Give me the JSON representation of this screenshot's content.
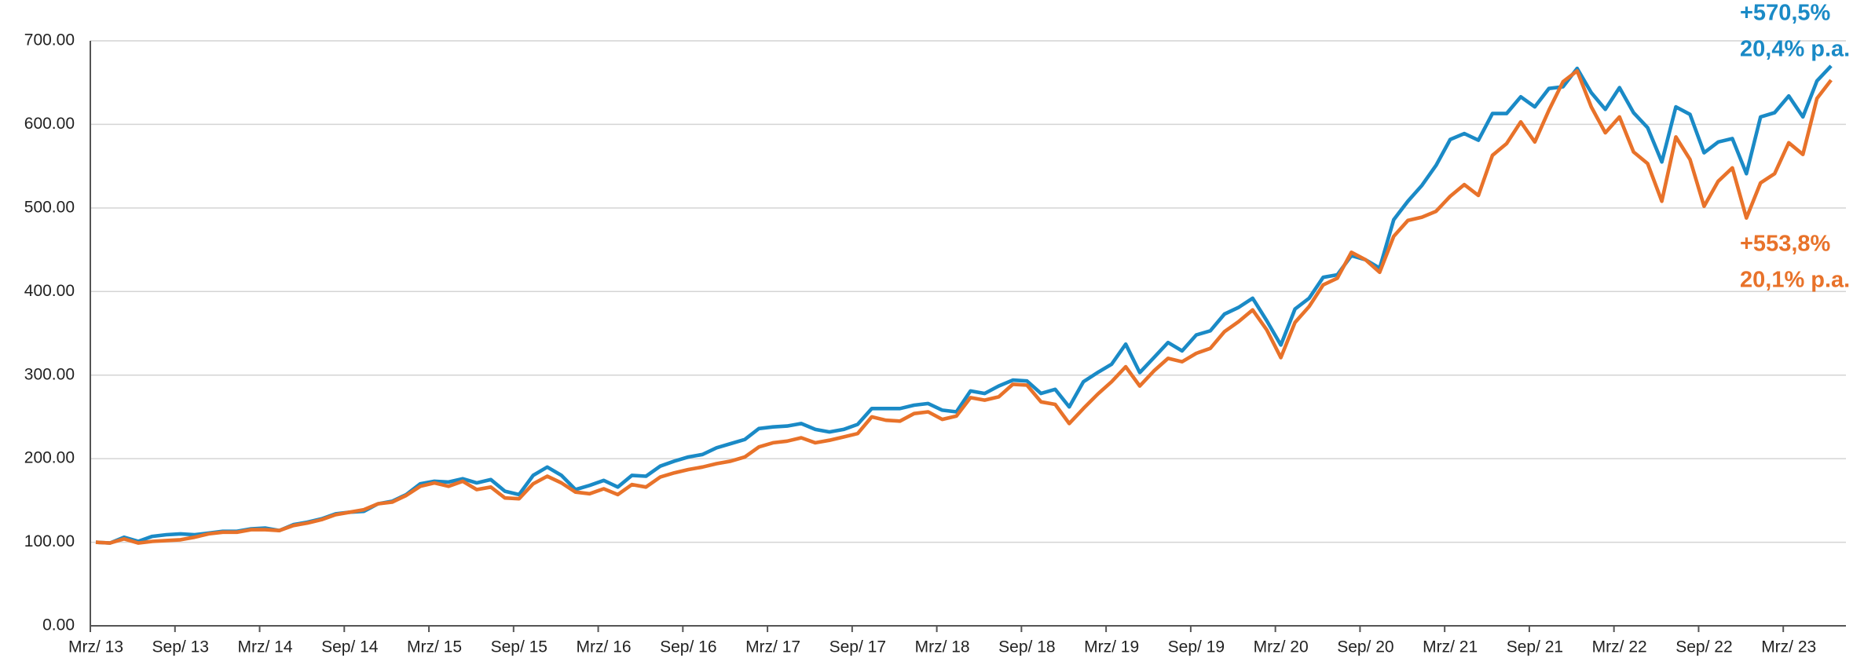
{
  "chart_data": {
    "type": "line",
    "categories": [
      "Mrz/ 13",
      null,
      null,
      null,
      null,
      null,
      "Sep/ 13",
      null,
      null,
      null,
      null,
      null,
      "Mrz/ 14",
      null,
      null,
      null,
      null,
      null,
      "Sep/ 14",
      null,
      null,
      null,
      null,
      null,
      "Mrz/ 15",
      null,
      null,
      null,
      null,
      null,
      "Sep/ 15",
      null,
      null,
      null,
      null,
      null,
      "Mrz/ 16",
      null,
      null,
      null,
      null,
      null,
      "Sep/ 16",
      null,
      null,
      null,
      null,
      null,
      "Mrz/ 17",
      null,
      null,
      null,
      null,
      null,
      "Sep/ 17",
      null,
      null,
      null,
      null,
      null,
      "Mrz/ 18",
      null,
      null,
      null,
      null,
      null,
      "Sep/ 18",
      null,
      null,
      null,
      null,
      null,
      "Mrz/ 19",
      null,
      null,
      null,
      null,
      null,
      "Sep/ 19",
      null,
      null,
      null,
      null,
      null,
      "Mrz/ 20",
      null,
      null,
      null,
      null,
      null,
      "Sep/ 20",
      null,
      null,
      null,
      null,
      null,
      "Mrz/ 21",
      null,
      null,
      null,
      null,
      null,
      "Sep/ 21",
      null,
      null,
      null,
      null,
      null,
      "Mrz/ 22",
      null,
      null,
      null,
      null,
      null,
      "Sep/ 22",
      null,
      null,
      null,
      null,
      null,
      "Mrz/ 23",
      null,
      null,
      null
    ],
    "series": [
      {
        "color": "#1a8ac6",
        "values": [
          100,
          99,
          106,
          101,
          107,
          109,
          110,
          109,
          111,
          113,
          113,
          116,
          117,
          114,
          121,
          124,
          128,
          134,
          136,
          137,
          146,
          149,
          157,
          170,
          173,
          172,
          176,
          171,
          175,
          161,
          157,
          180,
          190,
          180,
          163,
          168,
          174,
          166,
          180,
          179,
          191,
          197,
          202,
          205,
          213,
          218,
          223,
          236,
          238,
          239,
          242,
          235,
          232,
          235,
          241,
          260,
          260,
          260,
          264,
          266,
          258,
          256,
          281,
          278,
          287,
          294,
          293,
          278,
          283,
          262,
          292,
          303,
          313,
          337,
          303,
          321,
          339,
          329,
          348,
          353,
          373,
          381,
          392,
          365,
          336,
          379,
          392,
          417,
          420,
          443,
          438,
          428,
          486,
          508,
          527,
          551,
          582,
          589,
          581,
          613,
          613,
          633,
          621,
          643,
          645,
          667,
          638,
          618,
          644,
          614,
          596,
          555,
          621,
          612,
          566,
          579,
          583,
          541,
          609,
          614,
          634,
          609,
          652,
          670
        ]
      },
      {
        "color": "#e8722a",
        "values": [
          100,
          99,
          104,
          99,
          101,
          102,
          103,
          106,
          110,
          112,
          112,
          115,
          115,
          114,
          120,
          123,
          127,
          133,
          136,
          139,
          146,
          148,
          156,
          167,
          171,
          167,
          173,
          163,
          166,
          153,
          152,
          170,
          179,
          171,
          160,
          158,
          164,
          157,
          169,
          166,
          178,
          183,
          187,
          190,
          194,
          197,
          202,
          214,
          219,
          221,
          225,
          219,
          222,
          226,
          230,
          250,
          246,
          245,
          254,
          256,
          247,
          251,
          273,
          270,
          274,
          289,
          288,
          268,
          265,
          242,
          260,
          277,
          292,
          310,
          287,
          305,
          320,
          316,
          326,
          332,
          352,
          364,
          378,
          354,
          321,
          363,
          382,
          408,
          416,
          447,
          438,
          423,
          466,
          485,
          489,
          496,
          514,
          528,
          515,
          563,
          577,
          603,
          579,
          617,
          651,
          664,
          621,
          590,
          609,
          567,
          553,
          508,
          585,
          558,
          502,
          532,
          548,
          488,
          530,
          541,
          578,
          564,
          631,
          653
        ]
      }
    ],
    "annotations": [
      {
        "text": "+570,5%",
        "color": "#1a8ac6"
      },
      {
        "text": "20,4% p.a.",
        "color": "#1a8ac6"
      },
      {
        "text": "+553,8%",
        "color": "#e8722a"
      },
      {
        "text": "20,1% p.a.",
        "color": "#e8722a"
      }
    ],
    "ylim": [
      0,
      700
    ],
    "yticks": [
      {
        "value": 0,
        "label": "0.00"
      },
      {
        "value": 100,
        "label": "100.00"
      },
      {
        "value": 200,
        "label": "200.00"
      },
      {
        "value": 300,
        "label": "300.00"
      },
      {
        "value": 400,
        "label": "400.00"
      },
      {
        "value": 500,
        "label": "500.00"
      },
      {
        "value": 600,
        "label": "600.00"
      },
      {
        "value": 700,
        "label": "700.00"
      }
    ],
    "grid": true
  }
}
